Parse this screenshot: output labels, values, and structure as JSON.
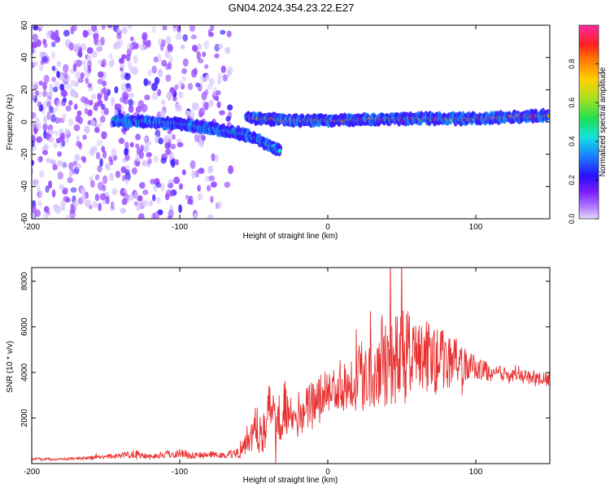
{
  "page_title": "GN04.2024.354.23.22.E27",
  "chart_data": [
    {
      "type": "heatmap",
      "panel": "top",
      "xlabel": "Height of straight line (km)",
      "ylabel": "Frequency (Hz)",
      "xlim": [
        -200,
        150
      ],
      "ylim": [
        -60,
        60
      ],
      "xticks": [
        -200,
        -100,
        0,
        100
      ],
      "yticks": [
        -60,
        -40,
        -20,
        0,
        20,
        40,
        60
      ],
      "colorbar": {
        "label": "Normalized spectral amplitude",
        "range": [
          0,
          1
        ],
        "ticks": [
          0.0,
          0.2,
          0.4,
          0.6,
          0.8
        ],
        "colormap": [
          "#d9c8ff",
          "#9a4dff",
          "#3a1aff",
          "#1a7fff",
          "#14e0e0",
          "#20e060",
          "#b0e020",
          "#ffd000",
          "#ff8000",
          "#ff2020",
          "#ff1aa0"
        ]
      },
      "noise_region_km": [
        -200,
        -65
      ],
      "signal_trend": [
        {
          "x": -145,
          "y": 1
        },
        {
          "x": -120,
          "y": 0
        },
        {
          "x": -100,
          "y": -1
        },
        {
          "x": -80,
          "y": -4
        },
        {
          "x": -65,
          "y": -6
        },
        {
          "x": -55,
          "y": -8
        },
        {
          "x": -40,
          "y": -14
        },
        {
          "x": -32,
          "y": -18
        },
        {
          "x": -55,
          "y": 3
        },
        {
          "x": -30,
          "y": 1
        },
        {
          "x": 0,
          "y": 1
        },
        {
          "x": 50,
          "y": 2
        },
        {
          "x": 100,
          "y": 2
        },
        {
          "x": 150,
          "y": 4
        }
      ]
    },
    {
      "type": "line",
      "panel": "bottom",
      "xlabel": "Height of straight line (km)",
      "ylabel": "SNR (10 * v/v)",
      "xlim": [
        -200,
        150
      ],
      "ylim": [
        0,
        8600
      ],
      "xticks": [
        -200,
        -100,
        0,
        100
      ],
      "yticks": [
        2000,
        4000,
        6000,
        8000
      ],
      "color": "#e83030",
      "series": [
        {
          "x": [
            -200,
            -180,
            -160,
            -140,
            -130,
            -120,
            -110,
            -100,
            -90,
            -80,
            -70,
            -60,
            -55,
            -50,
            -45,
            -40,
            -35,
            -30,
            -25,
            -20,
            -15,
            -10,
            -5,
            0,
            5,
            10,
            15,
            20,
            25,
            30,
            35,
            40,
            45,
            50,
            55,
            60,
            65,
            70,
            75,
            80,
            85,
            90,
            95,
            100,
            105,
            110,
            115,
            120,
            125,
            130,
            135,
            140,
            145,
            150
          ],
          "values": [
            200,
            200,
            250,
            350,
            450,
            300,
            400,
            450,
            350,
            400,
            350,
            500,
            1000,
            1500,
            1500,
            2200,
            2400,
            2500,
            2000,
            1800,
            2400,
            2800,
            3000,
            3200,
            3300,
            3500,
            3600,
            3800,
            4000,
            4200,
            4300,
            4500,
            4800,
            4600,
            4700,
            4800,
            4700,
            4600,
            4500,
            4600,
            4500,
            4400,
            4300,
            4200,
            4100,
            4000,
            3900,
            3900,
            3800,
            3800,
            3800,
            3700,
            3700,
            3700
          ],
          "spread": [
            60,
            60,
            80,
            120,
            200,
            120,
            180,
            200,
            150,
            150,
            120,
            300,
            600,
            900,
            1100,
            1400,
            1500,
            1500,
            900,
            700,
            900,
            1000,
            900,
            900,
            1000,
            1200,
            1300,
            1500,
            1700,
            1800,
            1900,
            2000,
            2200,
            2200,
            2000,
            1900,
            1800,
            1600,
            1500,
            1300,
            1100,
            900,
            700,
            500,
            450,
            400,
            350,
            350,
            300,
            300,
            300,
            300,
            300,
            300
          ]
        }
      ]
    }
  ]
}
